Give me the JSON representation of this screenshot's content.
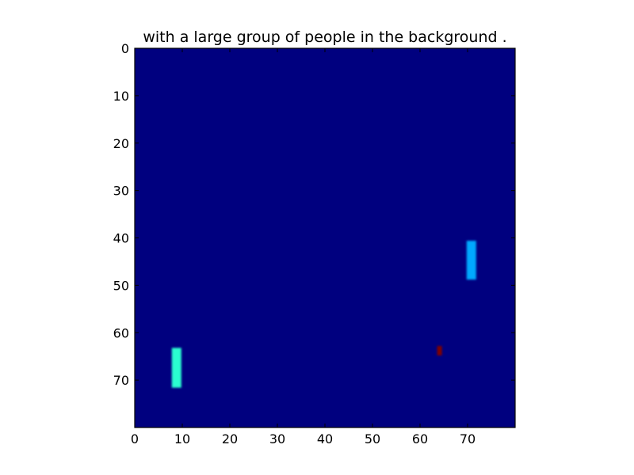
{
  "chart_data": {
    "type": "heatmap",
    "title": "with a large group of people in the background .",
    "xlabel": "",
    "ylabel": "",
    "x_range": [
      0,
      80
    ],
    "y_range": [
      0,
      80
    ],
    "y_inverted": true,
    "x_ticks": [
      "0",
      "10",
      "20",
      "30",
      "40",
      "50",
      "60",
      "70"
    ],
    "y_ticks": [
      "0",
      "10",
      "20",
      "30",
      "40",
      "50",
      "60",
      "70"
    ],
    "grid": false,
    "colormap": "jet",
    "background_value": 0,
    "background_color": "#00007f",
    "hotspots": [
      {
        "x0": 7.8,
        "x1": 9.8,
        "y0": 63.2,
        "y1": 71.6,
        "value": 0.42,
        "color": "#2affd0"
      },
      {
        "x0": 69.8,
        "x1": 71.8,
        "y0": 40.6,
        "y1": 48.8,
        "value": 0.3,
        "color": "#00a8ff"
      },
      {
        "x0": 63.6,
        "x1": 64.6,
        "y0": 62.8,
        "y1": 64.8,
        "value": 0.95,
        "color": "#7f0000"
      }
    ]
  }
}
